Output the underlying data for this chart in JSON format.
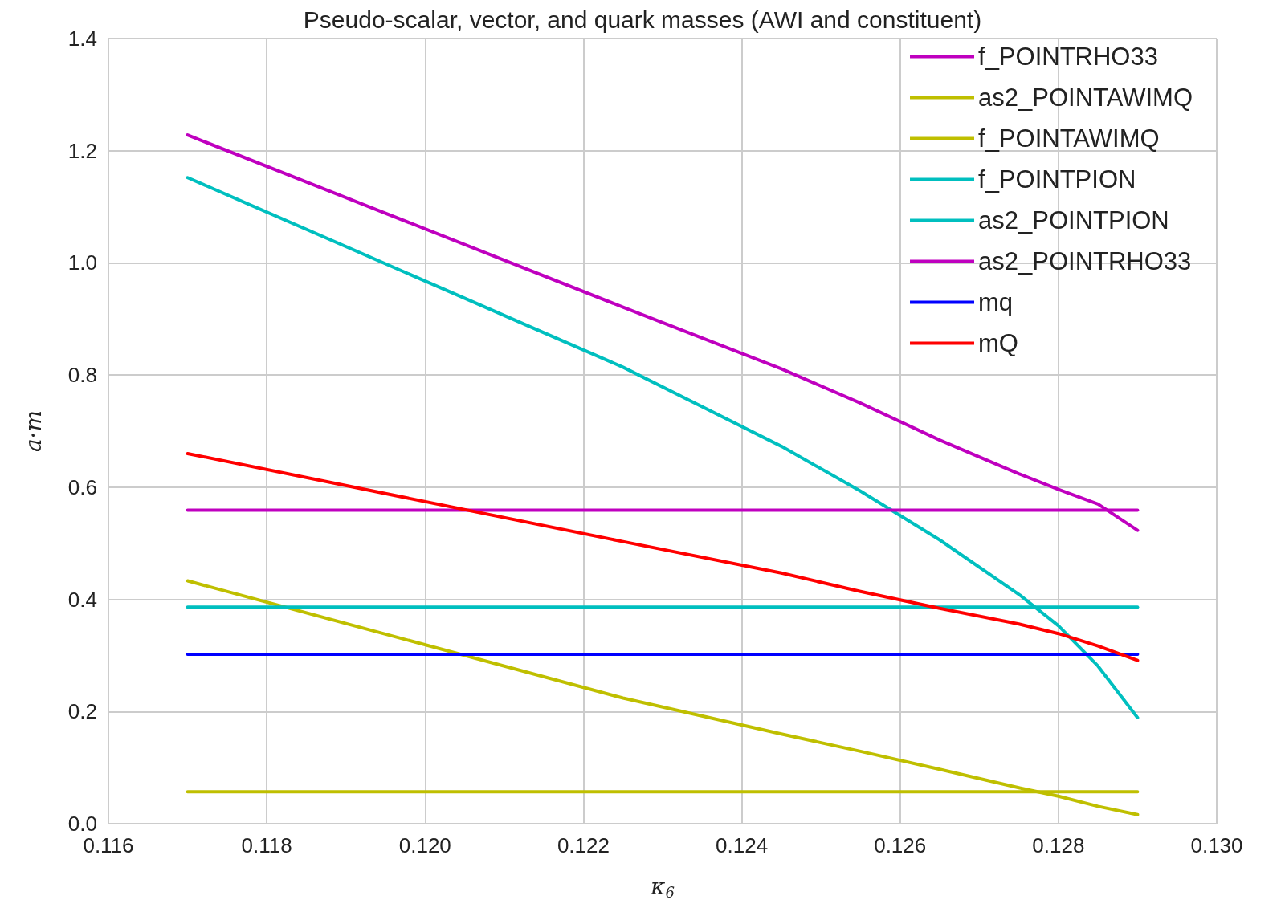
{
  "chart_data": {
    "type": "line",
    "title": "Pseudo-scalar, vector, and quark masses (AWI and constituent)",
    "xlabel": "κ$_{6}$",
    "ylabel": "a·m",
    "x": [
      0.117,
      0.1225,
      0.1245,
      0.1255,
      0.1265,
      0.1275,
      0.128,
      0.1285,
      0.129
    ],
    "series": [
      {
        "name": "f_POINTRHO33",
        "color": "#bf00bf",
        "values": [
          1.228,
          0.921,
          0.811,
          0.75,
          0.684,
          0.624,
          0.596,
          0.57,
          0.523
        ]
      },
      {
        "name": "as2_POINTAWIMQ",
        "color": "#bfbf00",
        "values": [
          0.057,
          0.057,
          0.057,
          0.057,
          0.057,
          0.057,
          0.057,
          0.057,
          0.057
        ]
      },
      {
        "name": "f_POINTAWIMQ",
        "color": "#bfbf00",
        "values": [
          0.433,
          0.224,
          0.16,
          0.129,
          0.097,
          0.064,
          0.049,
          0.031,
          0.016
        ]
      },
      {
        "name": "f_POINTPION",
        "color": "#00bfbf",
        "values": [
          1.152,
          0.814,
          0.673,
          0.593,
          0.506,
          0.409,
          0.353,
          0.281,
          0.189
        ]
      },
      {
        "name": "as2_POINTPION",
        "color": "#00bfbf",
        "values": [
          0.386,
          0.386,
          0.386,
          0.386,
          0.386,
          0.386,
          0.386,
          0.386,
          0.386
        ]
      },
      {
        "name": "as2_POINTRHO33",
        "color": "#bf00bf",
        "values": [
          0.559,
          0.559,
          0.559,
          0.559,
          0.559,
          0.559,
          0.559,
          0.559,
          0.559
        ]
      },
      {
        "name": "mq",
        "color": "#0000ff",
        "values": [
          0.302,
          0.302,
          0.302,
          0.302,
          0.302,
          0.302,
          0.302,
          0.302,
          0.302
        ]
      },
      {
        "name": "mQ",
        "color": "#ff0000",
        "values": [
          0.66,
          0.503,
          0.447,
          0.414,
          0.384,
          0.356,
          0.339,
          0.317,
          0.291
        ]
      }
    ],
    "xlim": [
      0.116,
      0.13
    ],
    "xticks": [
      0.116,
      0.118,
      {
        "value": 0.12,
        "label": "0.120"
      },
      0.122,
      0.124,
      0.126,
      0.128,
      {
        "value": 0.13,
        "label": "0.130"
      }
    ],
    "ylim": [
      0,
      1.4
    ],
    "yticks": [
      {
        "value": 0,
        "label": "0.0"
      },
      0.2,
      0.4,
      0.6,
      0.8,
      {
        "value": 1,
        "label": "1.0"
      },
      1.2,
      1.4
    ],
    "grid": true,
    "legend": "top right",
    "marker": "none",
    "line_style": "solid"
  }
}
